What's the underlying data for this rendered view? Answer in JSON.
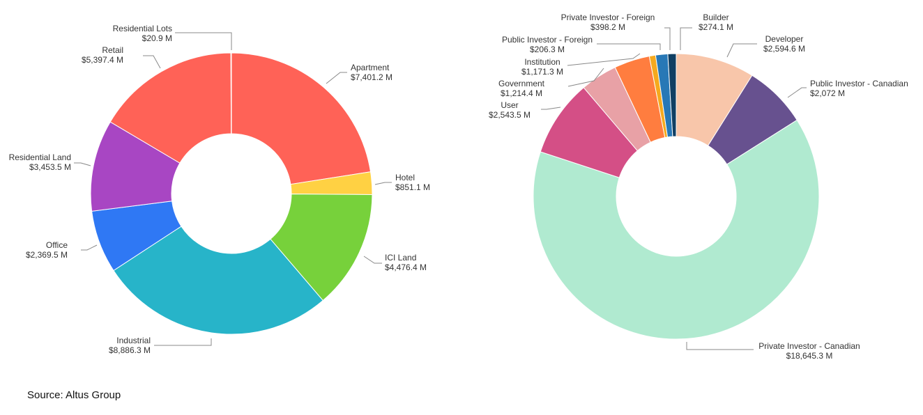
{
  "chart_data": [
    {
      "type": "pie",
      "donut": true,
      "title": "",
      "slices": [
        {
          "label": "Apartment",
          "value": 7401.2,
          "value_label": "$7,401.2 M",
          "color": "#ff6257"
        },
        {
          "label": "Hotel",
          "value": 851.1,
          "value_label": "$851.1 M",
          "color": "#ffd143"
        },
        {
          "label": "ICI Land",
          "value": 4476.4,
          "value_label": "$4,476.4 M",
          "color": "#77d13b"
        },
        {
          "label": "Industrial",
          "value": 8886.3,
          "value_label": "$8,886.3 M",
          "color": "#27b4c9"
        },
        {
          "label": "Office",
          "value": 2369.5,
          "value_label": "$2,369.5 M",
          "color": "#2f78f4"
        },
        {
          "label": "Residential Land",
          "value": 3453.5,
          "value_label": "$3,453.5 M",
          "color": "#a846c3"
        },
        {
          "label": "Retail",
          "value": 5397.4,
          "value_label": "$5,397.4 M",
          "color": "#ff6257"
        },
        {
          "label": "Residential Lots",
          "value": 20.9,
          "value_label": "$20.9 M",
          "color": "#ffd143"
        }
      ]
    },
    {
      "type": "pie",
      "donut": true,
      "title": "",
      "slices": [
        {
          "label": "Developer",
          "value": 2594.6,
          "value_label": "$2,594.6 M",
          "color": "#f8c6aa"
        },
        {
          "label": "Public Investor - Canadian",
          "value": 2072,
          "value_label": "$2,072 M",
          "color": "#67518f"
        },
        {
          "label": "Private Investor - Canadian",
          "value": 18645.3,
          "value_label": "$18,645.3 M",
          "color": "#b0ead0"
        },
        {
          "label": "User",
          "value": 2543.5,
          "value_label": "$2,543.5 M",
          "color": "#d44f86"
        },
        {
          "label": "Government",
          "value": 1214.4,
          "value_label": "$1,214.4 M",
          "color": "#e8a1a6"
        },
        {
          "label": "Institution",
          "value": 1171.3,
          "value_label": "$1,171.3 M",
          "color": "#ff7d3f"
        },
        {
          "label": "Public Investor - Foreign",
          "value": 206.3,
          "value_label": "$206.3 M",
          "color": "#f5a91e"
        },
        {
          "label": "Private Investor - Foreign",
          "value": 398.2,
          "value_label": "$398.2 M",
          "color": "#2878b6"
        },
        {
          "label": "Builder",
          "value": 274.1,
          "value_label": "$274.1 M",
          "color": "#103f63"
        }
      ]
    }
  ],
  "source": "Source: Altus Group"
}
